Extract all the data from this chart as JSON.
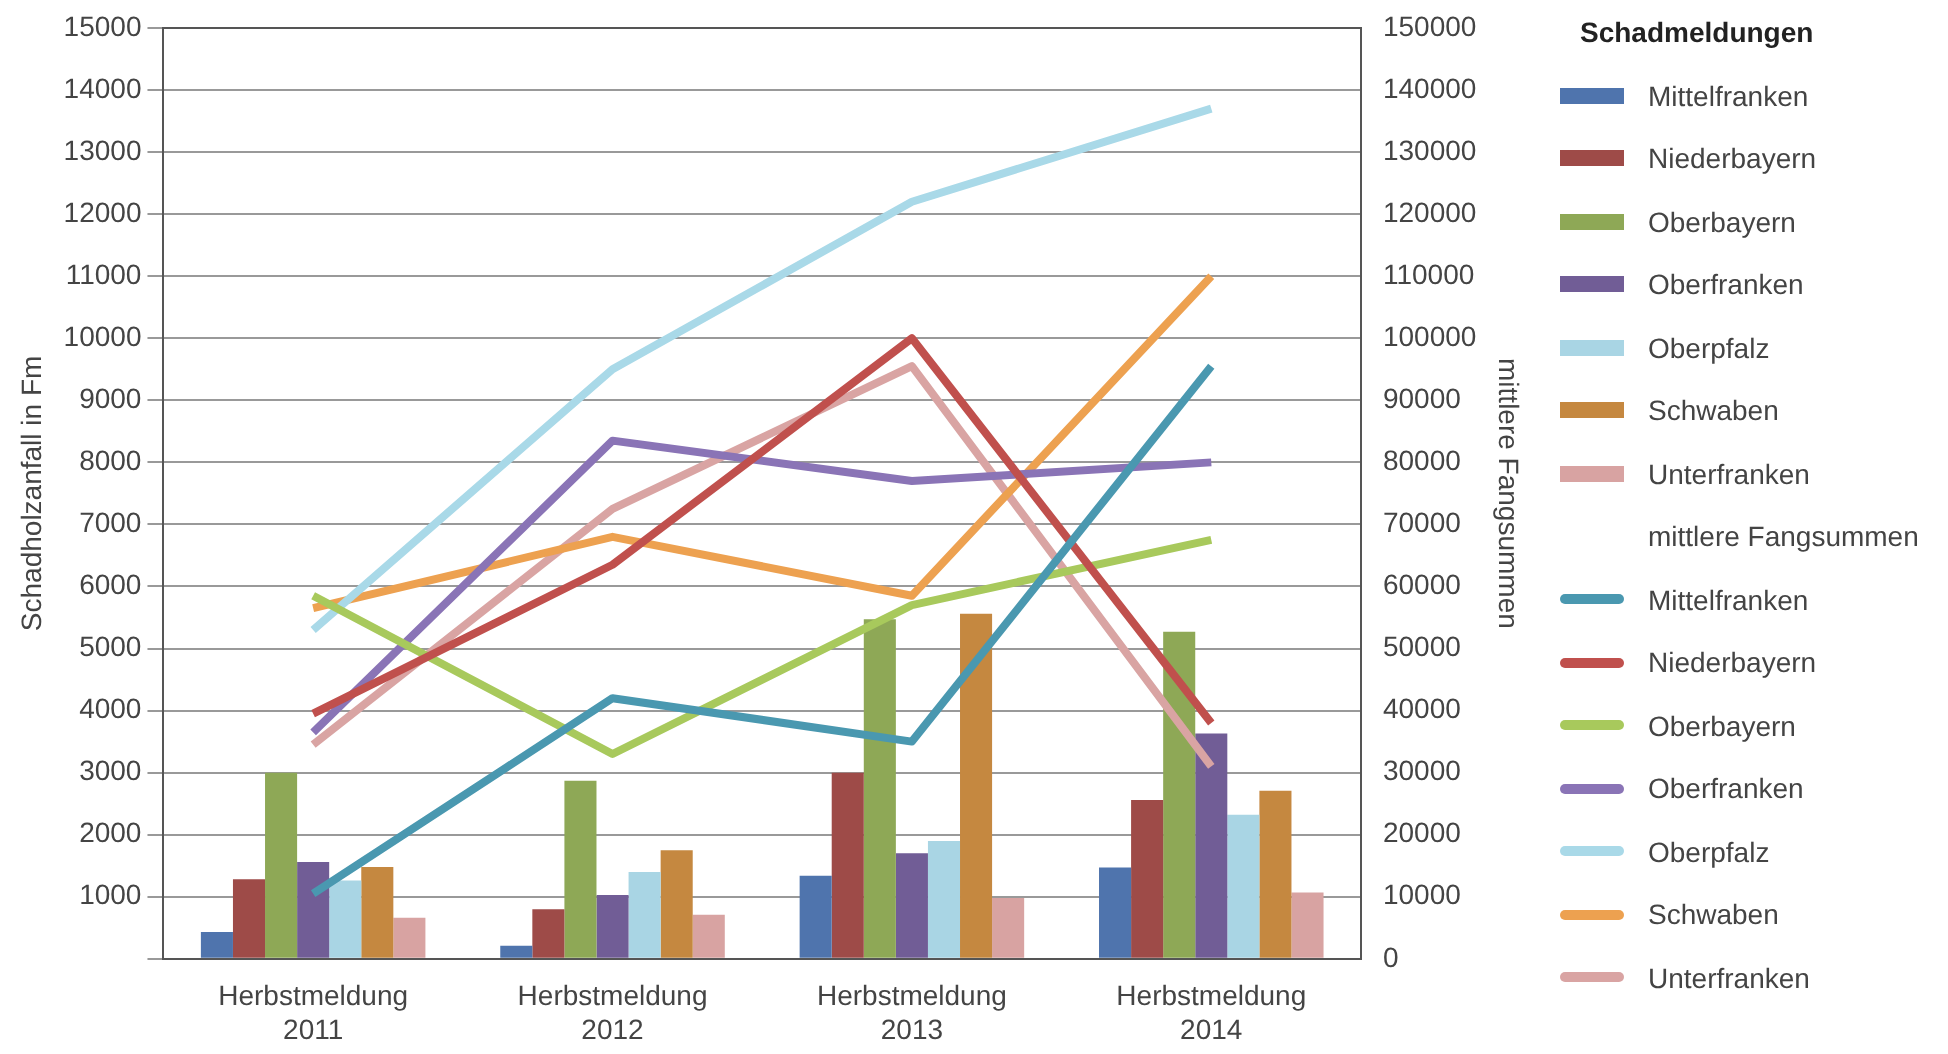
{
  "chart_data": {
    "type": "bar",
    "ylabel": "Schadholzanfall in Fm",
    "y2label": "mittlere Fangsummen",
    "legend_title": "Schadmeldungen",
    "legend": "right",
    "grid": "y",
    "annotations": [
      "mittlere Fangsummen"
    ],
    "categories": [
      "Herbstmeldung 2011",
      "Herbstmeldung 2012",
      "Herbstmeldung 2013",
      "Herbstmeldung 2014"
    ],
    "ylim": [
      0,
      15000
    ],
    "yticks": [
      {
        "value": 0,
        "label": null
      },
      1000,
      2000,
      3000,
      4000,
      5000,
      6000,
      7000,
      8000,
      9000,
      10000,
      11000,
      12000,
      13000,
      14000,
      15000
    ],
    "y2lim": [
      0,
      150000
    ],
    "y2ticks": [
      0,
      10000,
      20000,
      30000,
      40000,
      50000,
      60000,
      70000,
      80000,
      90000,
      100000,
      110000,
      120000,
      130000,
      140000,
      150000
    ],
    "series": [
      {
        "name": "Mittelfranken",
        "color": "#4f74ad",
        "values": [
          430,
          210,
          1340,
          1470
        ]
      },
      {
        "name": "Niederbayern",
        "color": "#9e4b48",
        "values": [
          1280,
          800,
          3000,
          2560
        ]
      },
      {
        "name": "Oberbayern",
        "color": "#8ea856",
        "values": [
          3000,
          2870,
          5470,
          5270
        ]
      },
      {
        "name": "Oberfranken",
        "color": "#715d96",
        "values": [
          1560,
          1030,
          1700,
          3630
        ]
      },
      {
        "name": "Oberpfalz",
        "color": "#a9d5e4",
        "values": [
          1260,
          1400,
          1900,
          2320
        ]
      },
      {
        "name": "Schwaben",
        "color": "#c58840",
        "values": [
          1480,
          1750,
          5560,
          2710
        ]
      },
      {
        "name": "Unterfranken",
        "color": "#d8a3a2",
        "values": [
          660,
          710,
          980,
          1070
        ]
      },
      {
        "name": "Mittelfranken",
        "type": "line",
        "axis": "y2",
        "color": "#4a98b0",
        "values": [
          10500,
          42000,
          35000,
          95500
        ]
      },
      {
        "name": "Niederbayern",
        "type": "line",
        "axis": "y2",
        "color": "#c0504d",
        "values": [
          39500,
          63500,
          100000,
          38000
        ]
      },
      {
        "name": "Oberbayern",
        "type": "line",
        "axis": "y2",
        "color": "#a8c95c",
        "values": [
          58500,
          33000,
          57000,
          67500
        ]
      },
      {
        "name": "Oberfranken",
        "type": "line",
        "axis": "y2",
        "color": "#8a74b6",
        "values": [
          36500,
          83500,
          77000,
          80000
        ]
      },
      {
        "name": "Oberpfalz",
        "type": "line",
        "axis": "y2",
        "color": "#a9d9e8",
        "values": [
          53000,
          95000,
          122000,
          137000
        ]
      },
      {
        "name": "Schwaben",
        "type": "line",
        "axis": "y2",
        "color": "#eda150",
        "values": [
          56500,
          68000,
          58500,
          110000
        ]
      },
      {
        "name": "Unterfranken",
        "type": "line",
        "axis": "y2",
        "color": "#d9a4a3",
        "values": [
          34500,
          72500,
          95500,
          31000
        ]
      }
    ]
  }
}
